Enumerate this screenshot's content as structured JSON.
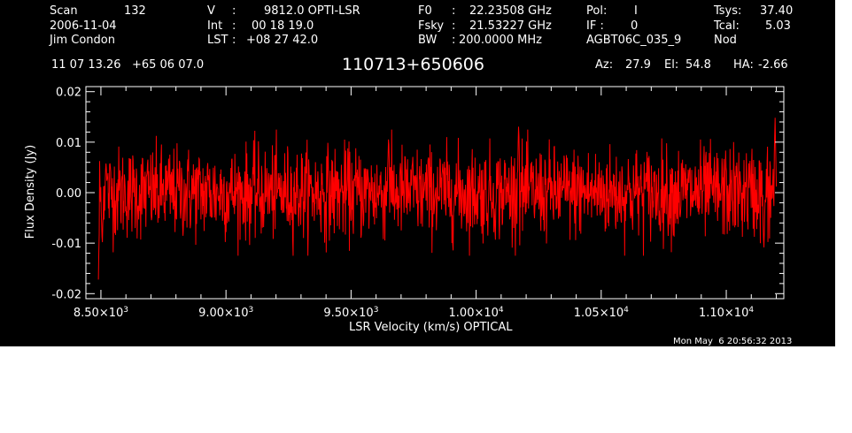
{
  "header": {
    "scan_label": "Scan",
    "scan_value": "132",
    "date": "2006-11-04",
    "observer": "Jim Condon",
    "v_label": "V",
    "v_value": "9812.0 OPTI-LSR",
    "int_label": "Int",
    "int_value": "00 18 19.0",
    "lst_label": "LST",
    "lst_value": "+08 27 42.0",
    "f0_label": "F0",
    "f0_value": "22.23508 GHz",
    "fsky_label": "Fsky",
    "fsky_value": "21.53227 GHz",
    "bw_label": "BW",
    "bw_value": "200.0000 MHz",
    "pol_label": "Pol:",
    "pol_value": "I",
    "if_label": "IF :",
    "if_value": "0",
    "project": "AGBT06C_035_9",
    "tsys_label": "Tsys:",
    "tsys_value": "37.40",
    "tcal_label": "Tcal:",
    "tcal_value": "5.03",
    "mode": "Nod",
    "coords": "11 07 13.26   +65 06 07.0",
    "source": "110713+650606",
    "az_label": "Az:",
    "az_value": "27.9",
    "el_label": "El:",
    "el_value": "54.8",
    "ha_label": "HA:",
    "ha_value": "-2.66",
    "timestamp": "Mon May  6 20:56:32 2013"
  },
  "chart_data": {
    "type": "line",
    "title": "110713+650606",
    "xlabel": "LSR Velocity (km/s) OPTICAL",
    "ylabel": "Flux Density (Jy)",
    "xlim": [
      8440,
      11230
    ],
    "ylim": [
      -0.021,
      0.021
    ],
    "x_ticks": [
      8500,
      9000,
      9500,
      10000,
      10500,
      11000
    ],
    "x_tick_labels": [
      {
        "mantissa": "8.50×10",
        "exp": "3"
      },
      {
        "mantissa": "9.00×10",
        "exp": "3"
      },
      {
        "mantissa": "9.50×10",
        "exp": "3"
      },
      {
        "mantissa": "1.00×10",
        "exp": "4"
      },
      {
        "mantissa": "1.05×10",
        "exp": "4"
      },
      {
        "mantissa": "1.10×10",
        "exp": "4"
      }
    ],
    "y_ticks": [
      -0.02,
      -0.01,
      0.0,
      0.01,
      0.02
    ],
    "y_tick_labels": [
      "-0.02",
      "-0.01",
      "0.00",
      "0.01",
      "0.02"
    ],
    "series": [
      {
        "color": "#ff0000",
        "x_start": 8490,
        "x_end": 11200,
        "n_points": 1700,
        "noise_sigma": 0.0045,
        "features": [
          {
            "x": 8490,
            "y": -0.017
          },
          {
            "x": 8505,
            "y": -0.01
          },
          {
            "x": 8520,
            "y": 0.006
          },
          {
            "x": 9650,
            "y": 0.012
          },
          {
            "x": 10170,
            "y": 0.014
          },
          {
            "x": 11150,
            "y": -0.012
          },
          {
            "x": 11195,
            "y": 0.015
          }
        ]
      }
    ],
    "grid": false,
    "background": "#000000",
    "axis_color": "#ffffff"
  }
}
